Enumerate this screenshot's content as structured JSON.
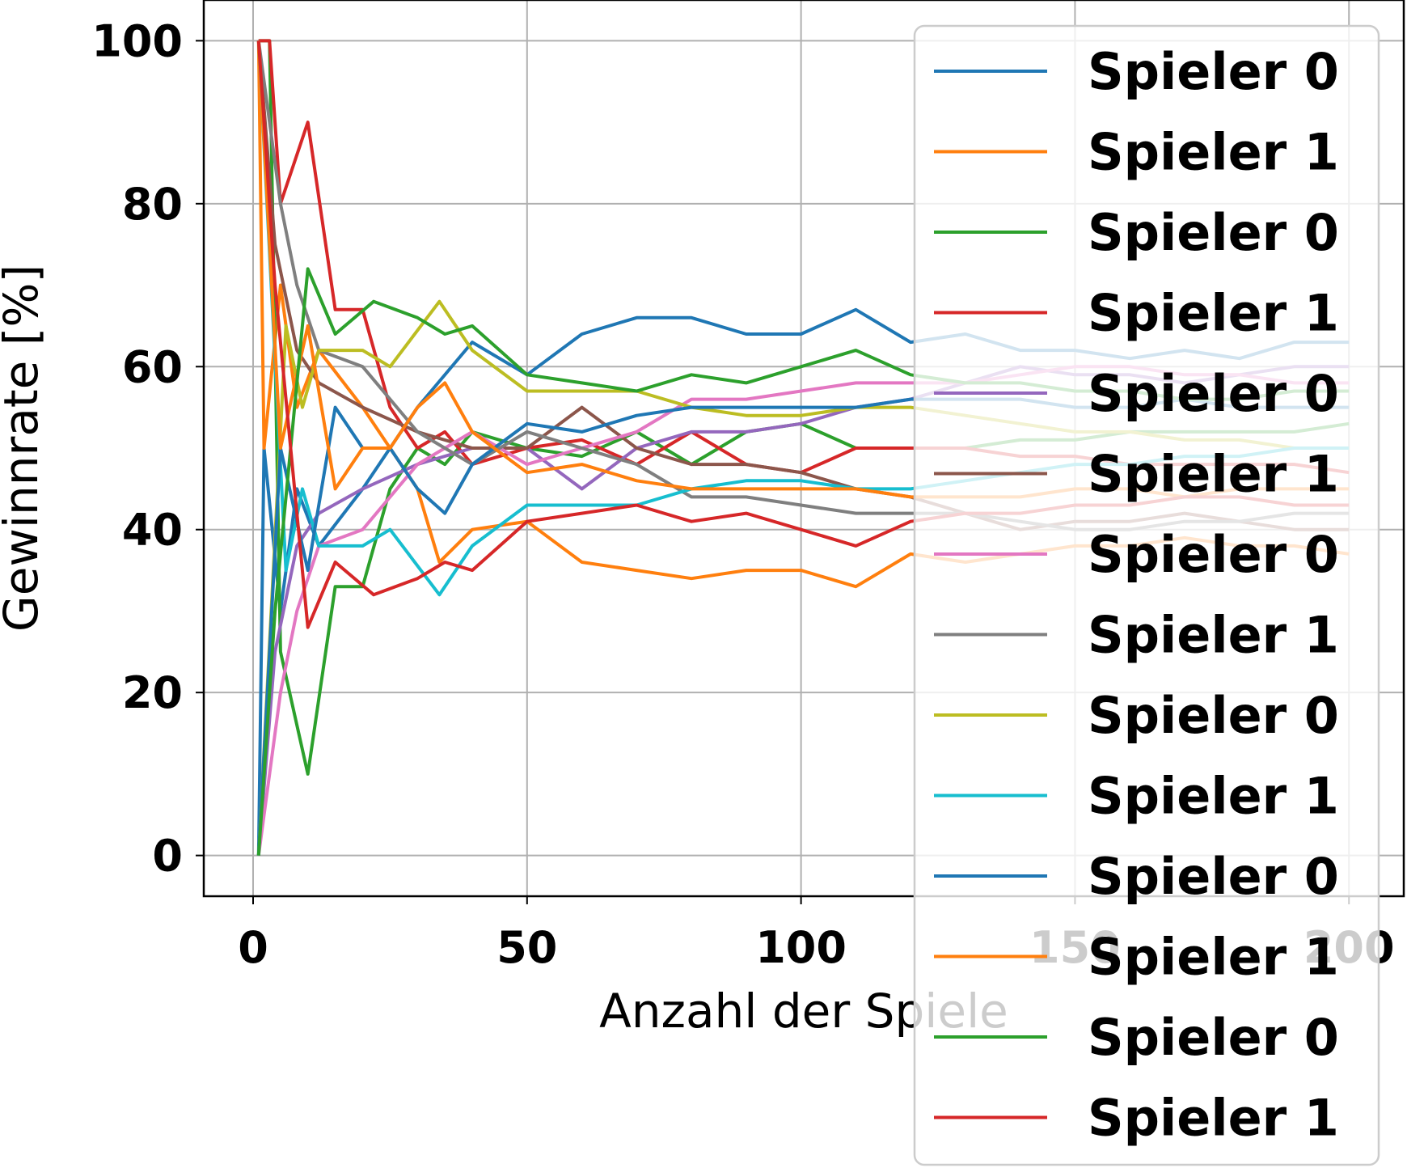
{
  "chart_data": {
    "type": "line",
    "xlabel": "Anzahl der Spiele",
    "ylabel": "Gewinnrate [%]",
    "xlim": [
      -9,
      210
    ],
    "ylim": [
      -5,
      105
    ],
    "xticks": [
      0,
      50,
      100,
      150,
      200
    ],
    "yticks": [
      0,
      20,
      40,
      60,
      80,
      100
    ],
    "grid": true,
    "legend_position": "top-right",
    "series": [
      {
        "name": "Spieler 0",
        "color": "#1f77b4",
        "x": [
          1,
          2,
          5,
          8,
          12,
          20,
          30,
          40,
          50,
          60,
          70,
          80,
          90,
          100,
          110,
          120,
          130,
          140,
          150,
          160,
          170,
          180,
          190,
          200
        ],
        "y": [
          0,
          50,
          30,
          45,
          38,
          45,
          55,
          63,
          59,
          64,
          66,
          66,
          64,
          64,
          67,
          63,
          64,
          62,
          62,
          61,
          62,
          61,
          63,
          63
        ]
      },
      {
        "name": "Spieler 1",
        "color": "#ff7f0e",
        "x": [
          1,
          2,
          5,
          8,
          12,
          20,
          30,
          34,
          40,
          50,
          60,
          70,
          80,
          90,
          100,
          110,
          120,
          130,
          140,
          150,
          160,
          170,
          180,
          190,
          200
        ],
        "y": [
          100,
          50,
          70,
          55,
          62,
          55,
          45,
          36,
          40,
          41,
          36,
          35,
          34,
          35,
          35,
          33,
          37,
          36,
          37,
          38,
          38,
          39,
          38,
          38,
          37
        ]
      },
      {
        "name": "Spieler 0",
        "color": "#2ca02c",
        "x": [
          1,
          3,
          5,
          10,
          15,
          20,
          25,
          30,
          35,
          40,
          50,
          60,
          70,
          80,
          90,
          100,
          110,
          120,
          130,
          140,
          150,
          160,
          170,
          180,
          190,
          200
        ],
        "y": [
          100,
          100,
          25,
          10,
          33,
          33,
          45,
          50,
          48,
          52,
          50,
          49,
          52,
          48,
          52,
          53,
          50,
          50,
          50,
          51,
          51,
          52,
          52,
          52,
          52,
          53
        ]
      },
      {
        "name": "Spieler 1",
        "color": "#d62728",
        "x": [
          1,
          3,
          5,
          10,
          15,
          20,
          25,
          30,
          35,
          40,
          50,
          60,
          70,
          80,
          90,
          100,
          110,
          120,
          130,
          140,
          150,
          160,
          170,
          180,
          190,
          200
        ],
        "y": [
          100,
          100,
          80,
          90,
          67,
          67,
          55,
          50,
          52,
          48,
          50,
          51,
          48,
          52,
          48,
          47,
          50,
          50,
          50,
          49,
          49,
          48,
          48,
          48,
          48,
          47
        ]
      },
      {
        "name": "Spieler 0",
        "color": "#9467bd",
        "x": [
          1,
          4,
          8,
          12,
          20,
          30,
          40,
          50,
          60,
          70,
          80,
          90,
          100,
          110,
          120,
          130,
          140,
          150,
          160,
          170,
          180,
          190,
          200
        ],
        "y": [
          0,
          25,
          38,
          42,
          45,
          48,
          50,
          50,
          45,
          50,
          52,
          52,
          53,
          55,
          56,
          58,
          60,
          59,
          59,
          58,
          59,
          60,
          60
        ]
      },
      {
        "name": "Spieler 1",
        "color": "#8c564b",
        "x": [
          1,
          4,
          8,
          12,
          20,
          30,
          40,
          50,
          60,
          70,
          80,
          90,
          100,
          110,
          120,
          130,
          140,
          150,
          160,
          170,
          180,
          190,
          200
        ],
        "y": [
          100,
          75,
          62,
          58,
          55,
          52,
          50,
          50,
          55,
          50,
          48,
          48,
          47,
          45,
          44,
          42,
          40,
          41,
          41,
          42,
          41,
          40,
          40
        ]
      },
      {
        "name": "Spieler 0",
        "color": "#e377c2",
        "x": [
          1,
          5,
          8,
          12,
          20,
          30,
          40,
          50,
          60,
          70,
          80,
          90,
          100,
          110,
          120,
          130,
          140,
          150,
          160,
          170,
          180,
          190,
          200
        ],
        "y": [
          0,
          20,
          30,
          38,
          40,
          48,
          52,
          48,
          50,
          52,
          56,
          56,
          57,
          58,
          58,
          58,
          59,
          60,
          60,
          59,
          59,
          58,
          58
        ]
      },
      {
        "name": "Spieler 1",
        "color": "#7f7f7f",
        "x": [
          1,
          5,
          8,
          12,
          20,
          30,
          40,
          50,
          60,
          70,
          80,
          90,
          100,
          110,
          120,
          130,
          140,
          150,
          160,
          170,
          180,
          190,
          200
        ],
        "y": [
          100,
          80,
          70,
          62,
          60,
          52,
          48,
          52,
          50,
          48,
          44,
          44,
          43,
          42,
          42,
          42,
          41,
          40,
          40,
          41,
          41,
          42,
          42
        ]
      },
      {
        "name": "Spieler 0",
        "color": "#bcbd22",
        "x": [
          1,
          6,
          9,
          12,
          20,
          25,
          34,
          40,
          50,
          60,
          70,
          80,
          90,
          100,
          110,
          120,
          130,
          140,
          150,
          160,
          170,
          180,
          190,
          200
        ],
        "y": [
          0,
          65,
          55,
          62,
          62,
          60,
          68,
          62,
          57,
          57,
          57,
          55,
          54,
          54,
          55,
          55,
          54,
          53,
          52,
          52,
          51,
          51,
          50,
          50
        ]
      },
      {
        "name": "Spieler 1",
        "color": "#17becf",
        "x": [
          1,
          6,
          9,
          12,
          20,
          25,
          34,
          40,
          50,
          60,
          70,
          80,
          90,
          100,
          110,
          120,
          130,
          140,
          150,
          160,
          170,
          180,
          190,
          200
        ],
        "y": [
          100,
          35,
          45,
          38,
          38,
          40,
          32,
          38,
          43,
          43,
          43,
          45,
          46,
          46,
          45,
          45,
          46,
          47,
          48,
          48,
          49,
          49,
          50,
          50
        ]
      },
      {
        "name": "Spieler 0",
        "color": "#1f77b4",
        "x": [
          1,
          5,
          10,
          15,
          20,
          25,
          30,
          35,
          40,
          50,
          60,
          70,
          80,
          90,
          100,
          110,
          120,
          130,
          140,
          150,
          160,
          170,
          180,
          190,
          200
        ],
        "y": [
          0,
          50,
          35,
          55,
          50,
          50,
          45,
          42,
          48,
          53,
          52,
          54,
          55,
          55,
          55,
          55,
          56,
          56,
          56,
          55,
          55,
          56,
          55,
          55,
          55
        ]
      },
      {
        "name": "Spieler 1",
        "color": "#ff7f0e",
        "x": [
          1,
          5,
          10,
          15,
          20,
          25,
          30,
          35,
          40,
          50,
          60,
          70,
          80,
          90,
          100,
          110,
          120,
          130,
          140,
          150,
          160,
          170,
          180,
          190,
          200
        ],
        "y": [
          100,
          50,
          65,
          45,
          50,
          50,
          55,
          58,
          52,
          47,
          48,
          46,
          45,
          45,
          45,
          45,
          44,
          44,
          44,
          45,
          45,
          44,
          45,
          45,
          45
        ]
      },
      {
        "name": "Spieler 0",
        "color": "#2ca02c",
        "x": [
          1,
          4,
          10,
          15,
          22,
          30,
          35,
          40,
          50,
          60,
          70,
          80,
          90,
          100,
          110,
          120,
          130,
          140,
          150,
          160,
          170,
          180,
          190,
          200
        ],
        "y": [
          0,
          30,
          72,
          64,
          68,
          66,
          64,
          65,
          59,
          58,
          57,
          59,
          58,
          60,
          62,
          59,
          58,
          58,
          57,
          57,
          56,
          56,
          57,
          57
        ]
      },
      {
        "name": "Spieler 1",
        "color": "#d62728",
        "x": [
          1,
          4,
          10,
          15,
          22,
          30,
          35,
          40,
          50,
          60,
          70,
          80,
          90,
          100,
          110,
          120,
          130,
          140,
          150,
          160,
          170,
          180,
          190,
          200
        ],
        "y": [
          100,
          70,
          28,
          36,
          32,
          34,
          36,
          35,
          41,
          42,
          43,
          41,
          42,
          40,
          38,
          41,
          42,
          42,
          43,
          43,
          44,
          44,
          43,
          43
        ]
      }
    ]
  }
}
